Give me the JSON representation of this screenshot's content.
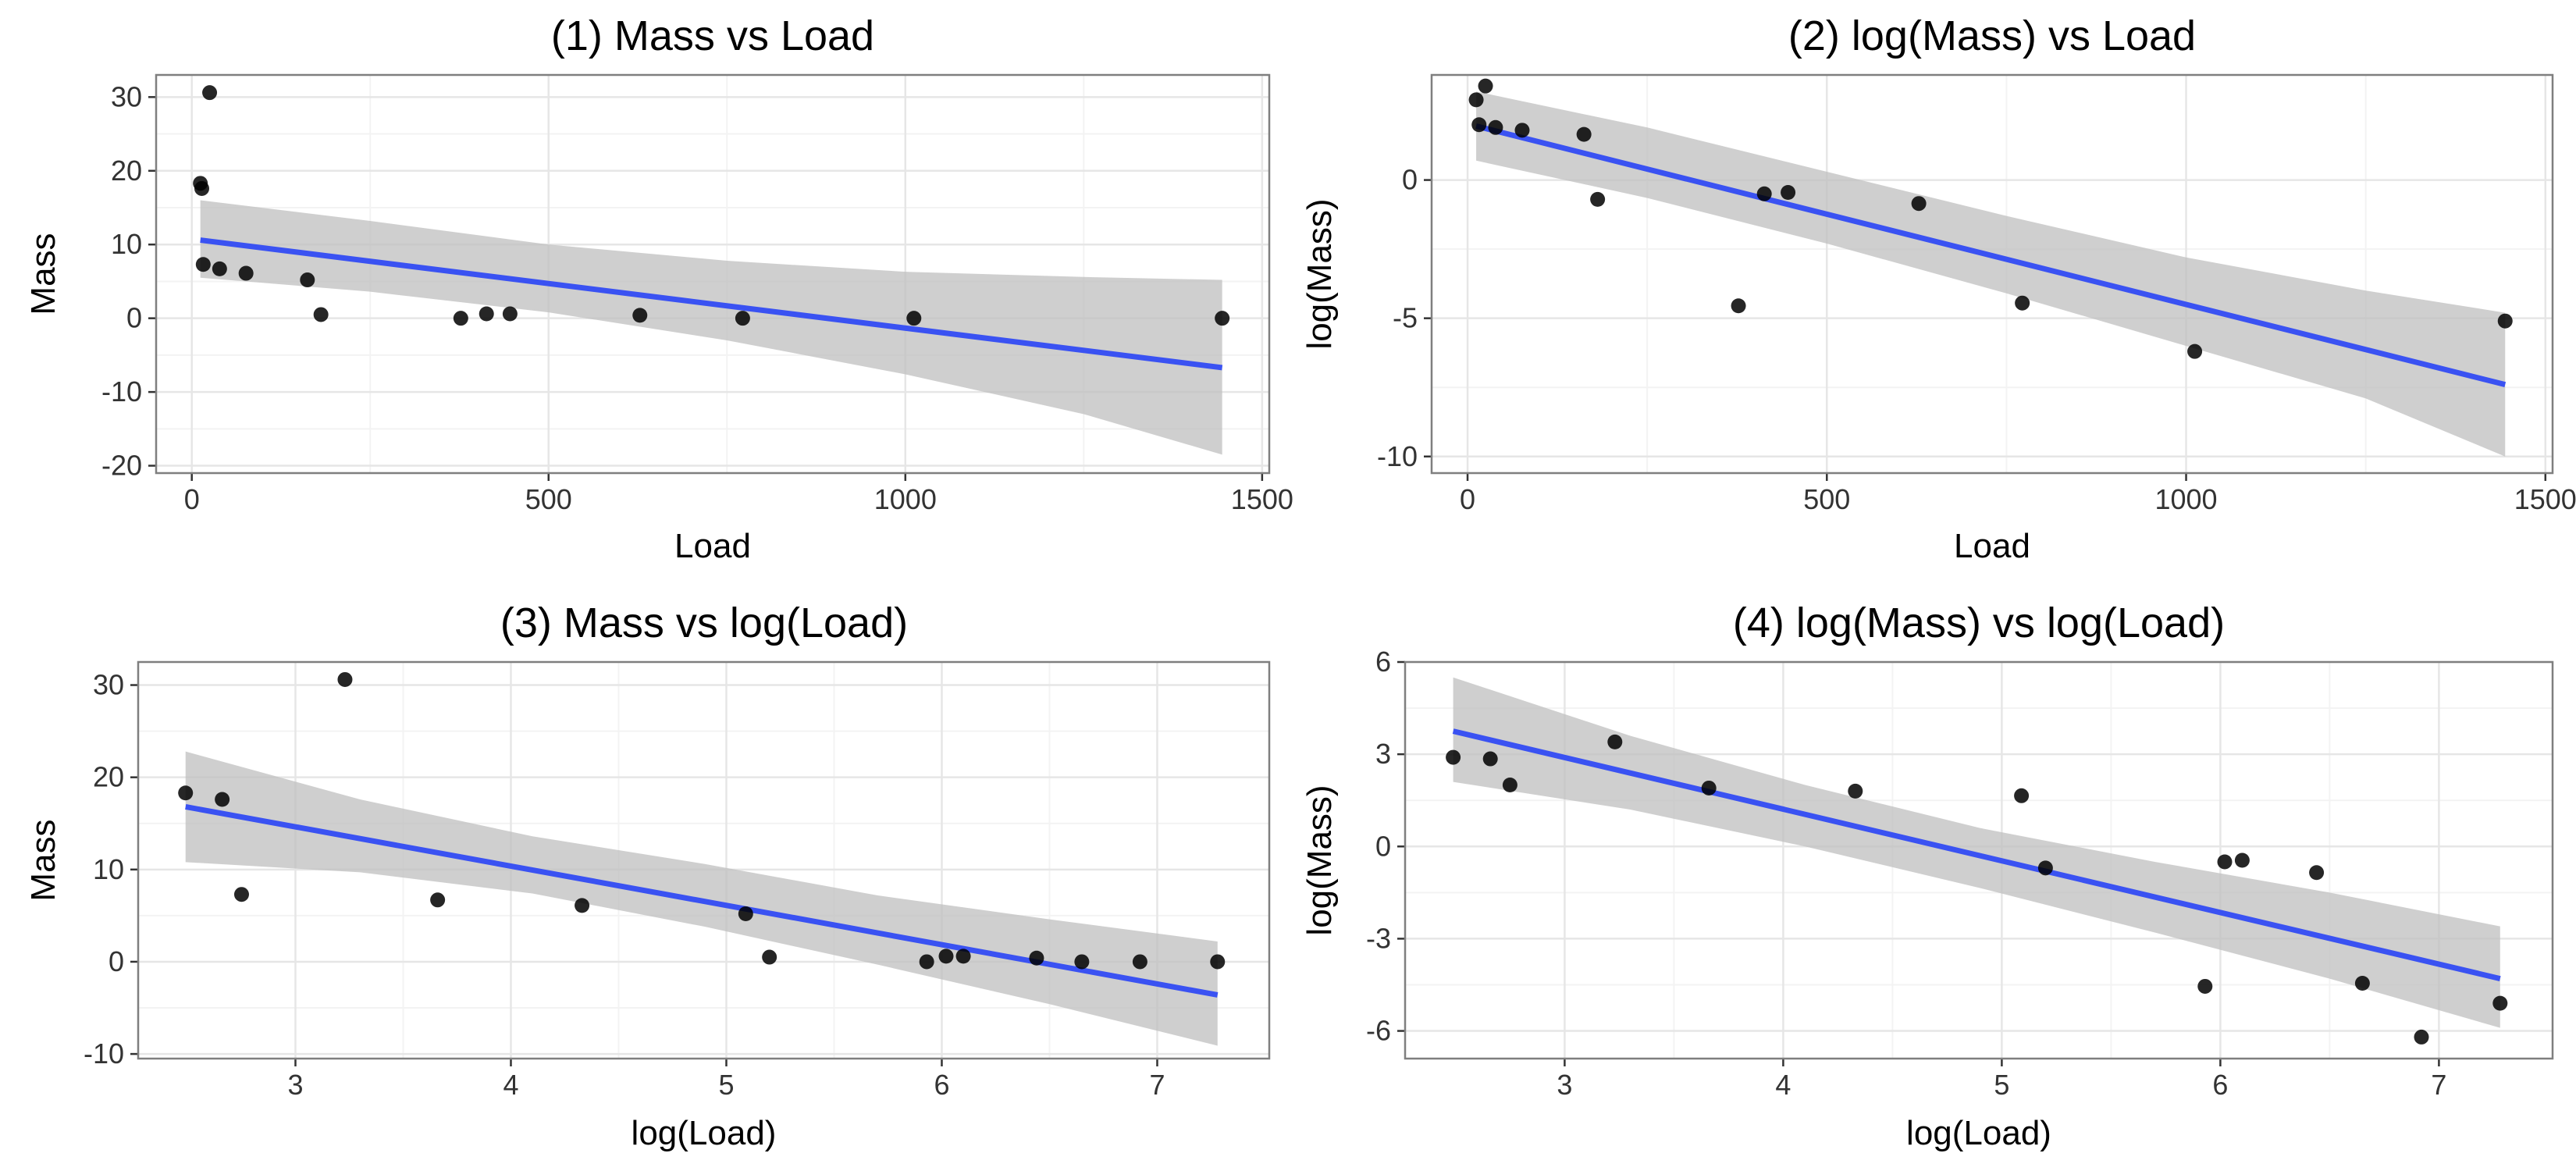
{
  "colors": {
    "line": "#3A52F2",
    "ribbon": "#BFBFBF",
    "points": "#000000",
    "grid_major": "#E6E6E6",
    "grid_minor": "#F3F3F3",
    "border": "#7F7F7F"
  },
  "chart_data": [
    {
      "type": "scatter",
      "title": "(1) Mass vs Load",
      "xlabel": "Load",
      "ylabel": "Mass",
      "xlim": [
        -50,
        1510
      ],
      "ylim": [
        -21,
        33
      ],
      "xticks": [
        0,
        500,
        1000,
        1500
      ],
      "yticks": [
        -20,
        -10,
        0,
        10,
        20,
        30
      ],
      "grid": true,
      "points": [
        {
          "x": 12,
          "y": 18.3
        },
        {
          "x": 14,
          "y": 17.6
        },
        {
          "x": 16,
          "y": 7.3
        },
        {
          "x": 25,
          "y": 30.6
        },
        {
          "x": 39,
          "y": 6.7
        },
        {
          "x": 76,
          "y": 6.1
        },
        {
          "x": 162,
          "y": 5.2
        },
        {
          "x": 181,
          "y": 0.5
        },
        {
          "x": 377,
          "y": 0.0
        },
        {
          "x": 413,
          "y": 0.6
        },
        {
          "x": 446,
          "y": 0.6
        },
        {
          "x": 628,
          "y": 0.4
        },
        {
          "x": 772,
          "y": 0.0
        },
        {
          "x": 1012,
          "y": 0.0
        },
        {
          "x": 1444,
          "y": 0.0
        }
      ],
      "fit": {
        "x": [
          12,
          1444
        ],
        "y": [
          10.6,
          -6.7
        ]
      },
      "ribbon": {
        "x": [
          12,
          250,
          500,
          750,
          1000,
          1250,
          1444
        ],
        "lower": [
          5.5,
          3.6,
          0.8,
          -3.0,
          -7.6,
          -13.0,
          -18.5
        ],
        "upper": [
          16.0,
          13.2,
          10.0,
          7.8,
          6.3,
          5.6,
          5.2
        ]
      }
    },
    {
      "type": "scatter",
      "title": "(2) log(Mass) vs Load",
      "xlabel": "Load",
      "ylabel": "log(Mass)",
      "xlim": [
        -50,
        1510
      ],
      "ylim": [
        -10.6,
        3.8
      ],
      "xticks": [
        0,
        500,
        1000,
        1500
      ],
      "yticks": [
        -10,
        -5,
        0
      ],
      "grid": true,
      "points": [
        {
          "x": 12,
          "y": 2.9
        },
        {
          "x": 16,
          "y": 2.0
        },
        {
          "x": 25,
          "y": 3.4
        },
        {
          "x": 39,
          "y": 1.9
        },
        {
          "x": 76,
          "y": 1.8
        },
        {
          "x": 162,
          "y": 1.65
        },
        {
          "x": 181,
          "y": -0.7
        },
        {
          "x": 377,
          "y": -4.55
        },
        {
          "x": 413,
          "y": -0.5
        },
        {
          "x": 446,
          "y": -0.45
        },
        {
          "x": 628,
          "y": -0.85
        },
        {
          "x": 772,
          "y": -4.45
        },
        {
          "x": 1012,
          "y": -6.2
        },
        {
          "x": 1444,
          "y": -5.1
        }
      ],
      "fit": {
        "x": [
          12,
          1444
        ],
        "y": [
          1.95,
          -7.4
        ]
      },
      "ribbon": {
        "x": [
          12,
          250,
          500,
          750,
          1000,
          1250,
          1444
        ],
        "lower": [
          0.7,
          -0.65,
          -2.3,
          -4.1,
          -6.0,
          -7.9,
          -10.0
        ],
        "upper": [
          3.2,
          1.9,
          0.3,
          -1.3,
          -2.8,
          -4.0,
          -4.8
        ]
      }
    },
    {
      "type": "scatter",
      "title": "(3) Mass vs log(Load)",
      "xlabel": "log(Load)",
      "ylabel": "Mass",
      "xlim": [
        2.27,
        7.52
      ],
      "ylim": [
        -10.5,
        32.5
      ],
      "xticks": [
        3,
        4,
        5,
        6,
        7
      ],
      "yticks": [
        -10,
        0,
        10,
        20,
        30
      ],
      "grid": true,
      "points": [
        {
          "x": 2.49,
          "y": 18.3
        },
        {
          "x": 2.66,
          "y": 17.6
        },
        {
          "x": 2.75,
          "y": 7.3
        },
        {
          "x": 3.23,
          "y": 30.6
        },
        {
          "x": 3.66,
          "y": 6.7
        },
        {
          "x": 4.33,
          "y": 6.1
        },
        {
          "x": 5.09,
          "y": 5.2
        },
        {
          "x": 5.2,
          "y": 0.5
        },
        {
          "x": 5.93,
          "y": 0.0
        },
        {
          "x": 6.02,
          "y": 0.6
        },
        {
          "x": 6.1,
          "y": 0.6
        },
        {
          "x": 6.44,
          "y": 0.4
        },
        {
          "x": 6.65,
          "y": 0.0
        },
        {
          "x": 6.92,
          "y": 0.0
        },
        {
          "x": 7.28,
          "y": 0.0
        }
      ],
      "fit": {
        "x": [
          2.49,
          7.28
        ],
        "y": [
          16.8,
          -3.6
        ]
      },
      "ribbon": {
        "x": [
          2.49,
          3.3,
          4.1,
          4.9,
          5.7,
          6.5,
          7.28
        ],
        "lower": [
          10.8,
          9.7,
          7.4,
          3.8,
          -0.3,
          -4.6,
          -9.1
        ],
        "upper": [
          22.8,
          17.6,
          13.6,
          10.6,
          7.2,
          4.6,
          2.2
        ]
      }
    },
    {
      "type": "scatter",
      "title": "(4) log(Mass) vs log(Load)",
      "xlabel": "log(Load)",
      "ylabel": "log(Mass)",
      "xlim": [
        2.27,
        7.52
      ],
      "ylim": [
        -6.9,
        6.0
      ],
      "xticks": [
        3,
        4,
        5,
        6,
        7
      ],
      "yticks": [
        -6,
        -3,
        0,
        3,
        6
      ],
      "grid": true,
      "points": [
        {
          "x": 2.49,
          "y": 2.9
        },
        {
          "x": 2.66,
          "y": 2.85
        },
        {
          "x": 2.75,
          "y": 2.0
        },
        {
          "x": 3.23,
          "y": 3.4
        },
        {
          "x": 3.66,
          "y": 1.9
        },
        {
          "x": 4.33,
          "y": 1.8
        },
        {
          "x": 5.09,
          "y": 1.65
        },
        {
          "x": 5.2,
          "y": -0.7
        },
        {
          "x": 5.93,
          "y": -4.55
        },
        {
          "x": 6.02,
          "y": -0.5
        },
        {
          "x": 6.1,
          "y": -0.45
        },
        {
          "x": 6.44,
          "y": -0.85
        },
        {
          "x": 6.65,
          "y": -4.45
        },
        {
          "x": 6.92,
          "y": -6.2
        },
        {
          "x": 7.28,
          "y": -5.1
        }
      ],
      "fit": {
        "x": [
          2.49,
          7.28
        ],
        "y": [
          3.75,
          -4.3
        ]
      },
      "ribbon": {
        "x": [
          2.49,
          3.3,
          4.1,
          4.9,
          5.7,
          6.5,
          7.28
        ],
        "lower": [
          2.1,
          1.2,
          0.0,
          -1.35,
          -2.8,
          -4.3,
          -5.9
        ],
        "upper": [
          5.5,
          3.6,
          2.0,
          0.6,
          -0.5,
          -1.5,
          -2.6
        ]
      }
    }
  ]
}
